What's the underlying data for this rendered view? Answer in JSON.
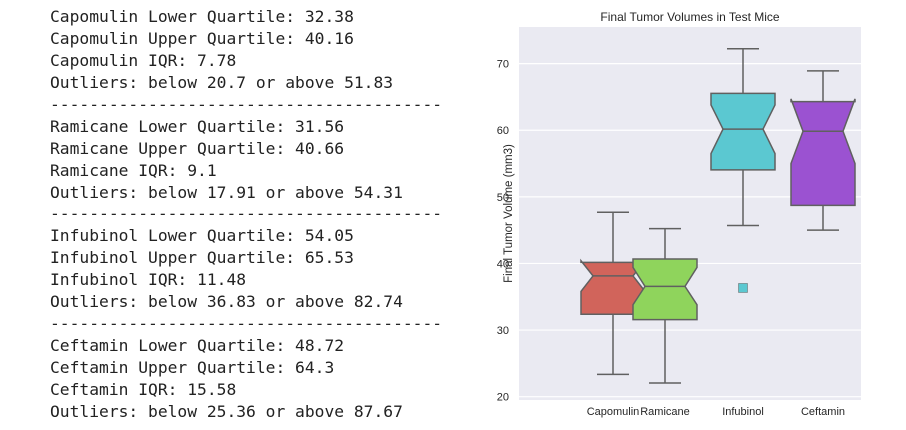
{
  "output": {
    "lines": [
      "Capomulin Lower Quartile: 32.38",
      "Capomulin Upper Quartile: 40.16",
      "Capomulin IQR: 7.78",
      "Outliers: below 20.7 or above 51.83",
      "----------------------------------------",
      "Ramicane Lower Quartile: 31.56",
      "Ramicane Upper Quartile: 40.66",
      "Ramicane IQR: 9.1",
      "Outliers: below 17.91 or above 54.31",
      "----------------------------------------",
      "Infubinol Lower Quartile: 54.05",
      "Infubinol Upper Quartile: 65.53",
      "Infubinol IQR: 11.48",
      "Outliers: below 36.83 or above 82.74",
      "----------------------------------------",
      "Ceftamin Lower Quartile: 48.72",
      "Ceftamin Upper Quartile: 64.3",
      "Ceftamin IQR: 15.58",
      "Outliers: below 25.36 or above 87.67"
    ]
  },
  "chart_data": {
    "type": "box",
    "title": "Final Tumor Volumes in Test Mice",
    "xlabel": "",
    "ylabel": "Final Tumor Volume (mm3)",
    "ylim": [
      19.5,
      75.5
    ],
    "yticks": [
      20,
      30,
      40,
      50,
      60,
      70
    ],
    "grid": true,
    "notched": true,
    "categories": [
      "Capomulin",
      "Ramicane",
      "Infubinol",
      "Ceftamin"
    ],
    "boxes": [
      {
        "label": "Capomulin",
        "whisker_low": 23.34,
        "q1": 32.38,
        "median": 38.13,
        "q3": 40.16,
        "whisker_high": 47.69,
        "notch_low": 35.8,
        "notch_high": 40.4,
        "outliers": [],
        "color": "#D1645B"
      },
      {
        "label": "Ramicane",
        "whisker_low": 22.05,
        "q1": 31.56,
        "median": 36.56,
        "q3": 40.66,
        "whisker_high": 45.22,
        "notch_low": 33.8,
        "notch_high": 39.4,
        "outliers": [],
        "color": "#8FD45C"
      },
      {
        "label": "Infubinol",
        "whisker_low": 45.7,
        "q1": 54.05,
        "median": 60.17,
        "q3": 65.53,
        "whisker_high": 72.23,
        "notch_low": 56.5,
        "notch_high": 63.8,
        "outliers": [
          36.32
        ],
        "color": "#5BC8D1"
      },
      {
        "label": "Ceftamin",
        "whisker_low": 45.0,
        "q1": 48.72,
        "median": 59.85,
        "q3": 64.3,
        "whisker_high": 68.92,
        "notch_low": 55.0,
        "notch_high": 64.7,
        "outliers": [],
        "color": "#9B52D1"
      }
    ]
  }
}
